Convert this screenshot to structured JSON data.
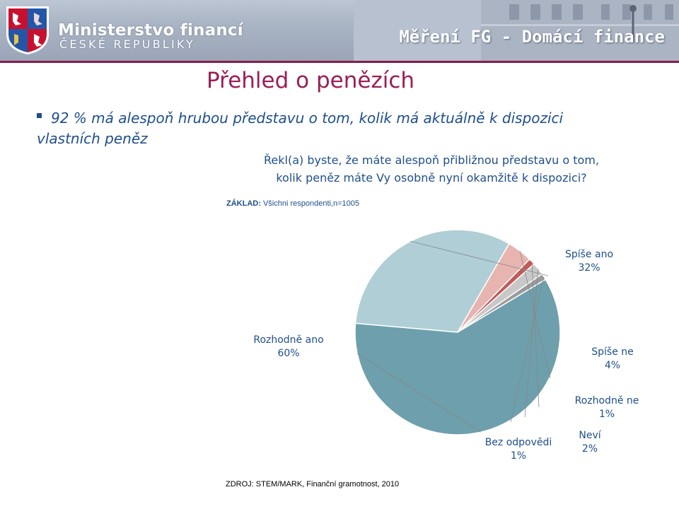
{
  "header": {
    "ministry_name": "Ministerstvo financí",
    "ministry_subtitle": "ČESKÉ REPUBLIKY",
    "title": "Měření FG - Domácí finance"
  },
  "page_title": "Přehled o penězích",
  "bullet_text": "92 % má alespoň hrubou představu o tom, kolik má aktuálně k dispozici vlastních peněz",
  "question_line1": "Řekl(a) byste, že máte alespoň přibližnou představu o tom,",
  "question_line2": "kolik peněz máte Vy osobně nyní okamžitě k dispozici?",
  "base_note": {
    "label": "ZÁKLAD:",
    "text": "Všichni respondenti,n=1005"
  },
  "source_note": "ZDROJ: STEM/MARK, Finanční gramotnost, 2010",
  "colors": {
    "accent": "#9a1e58",
    "text_blue": "#1f4e8c",
    "header_bg": "#a9b4c4"
  },
  "chart_data": {
    "type": "pie",
    "slices": [
      {
        "name": "Spíše ano",
        "label": "32%",
        "value": 32,
        "color": "#b0ced6"
      },
      {
        "name": "Spíše ne",
        "label": "4%",
        "value": 4,
        "color": "#e8b4b0"
      },
      {
        "name": "Rozhodně ne",
        "label": "1%",
        "value": 1,
        "color": "#c25a58"
      },
      {
        "name": "Neví",
        "label": "2%",
        "value": 2,
        "color": "#c8c8c8"
      },
      {
        "name": "Bez odpovědi",
        "label": "1%",
        "value": 1,
        "color": "#9a9a9a"
      },
      {
        "name": "Rozhodně ano",
        "label": "60%",
        "value": 60,
        "color": "#6e9fac"
      }
    ]
  }
}
